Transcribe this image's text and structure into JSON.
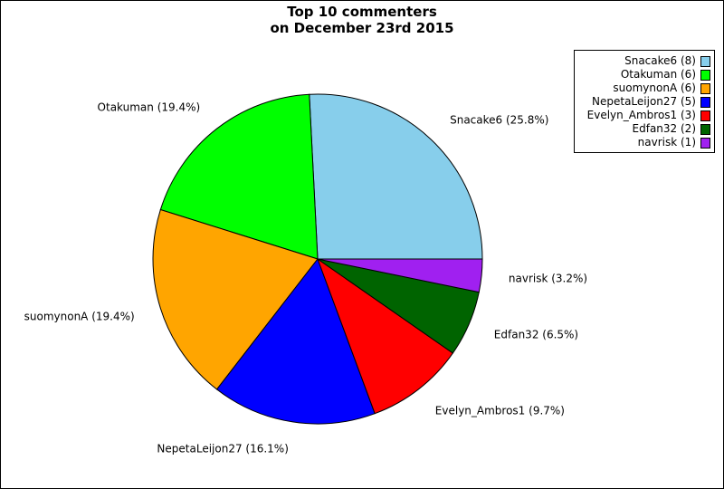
{
  "chart_data": {
    "type": "pie",
    "title": "Top 10 commenters",
    "subtitle": "on December 23rd 2015",
    "legend_position": "top-right",
    "slices": [
      {
        "name": "Snacake6",
        "value": 8,
        "color": "#87ceeb",
        "label": "Snacake6 (25.8%)",
        "legend": "Snacake6 (8)"
      },
      {
        "name": "Otakuman",
        "value": 6,
        "color": "#00ff00",
        "label": "Otakuman (19.4%)",
        "legend": "Otakuman (6)"
      },
      {
        "name": "suomynonA",
        "value": 6,
        "color": "#ffa500",
        "label": "suomynonA (19.4%)",
        "legend": "suomynonA (6)"
      },
      {
        "name": "NepetaLeijon27",
        "value": 5,
        "color": "#0000ff",
        "label": "NepetaLeijon27 (16.1%)",
        "legend": "NepetaLeijon27 (5)"
      },
      {
        "name": "Evelyn_Ambros1",
        "value": 3,
        "color": "#ff0000",
        "label": "Evelyn_Ambros1 (9.7%)",
        "legend": "Evelyn_Ambros1 (3)"
      },
      {
        "name": "Edfan32",
        "value": 2,
        "color": "#006400",
        "label": "Edfan32 (6.5%)",
        "legend": "Edfan32 (2)"
      },
      {
        "name": "navrisk",
        "value": 1,
        "color": "#a020f0",
        "label": "navrisk (3.2%)",
        "legend": "navrisk (1)"
      }
    ]
  }
}
